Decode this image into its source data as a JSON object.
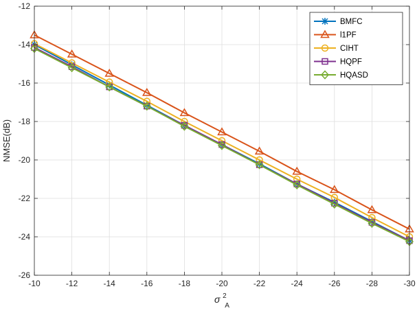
{
  "chart_data": {
    "type": "line",
    "title": "",
    "xlabel_symbol": "σ",
    "xlabel_sup": "2",
    "xlabel_sub": "A",
    "ylabel": "NMSE(dB)",
    "x": [
      -10,
      -12,
      -14,
      -16,
      -18,
      -20,
      -22,
      -24,
      -26,
      -28,
      -30
    ],
    "xlim": [
      -10,
      -30
    ],
    "ylim": [
      -26,
      -12
    ],
    "xticks": [
      -10,
      -12,
      -14,
      -16,
      -18,
      -20,
      -22,
      -24,
      -26,
      -28,
      -30
    ],
    "yticks": [
      -12,
      -14,
      -16,
      -18,
      -20,
      -22,
      -24,
      -26
    ],
    "grid": true,
    "legend_position": "top-right",
    "series": [
      {
        "name": "BMFC",
        "marker": "asterisk",
        "color": "#0072BD",
        "values": [
          -14.0,
          -15.05,
          -16.1,
          -17.15,
          -18.2,
          -19.2,
          -20.2,
          -21.25,
          -22.2,
          -23.2,
          -24.2
        ]
      },
      {
        "name": "l1PF",
        "marker": "triangle",
        "color": "#D95319",
        "values": [
          -13.5,
          -14.5,
          -15.5,
          -16.5,
          -17.55,
          -18.55,
          -19.55,
          -20.6,
          -21.55,
          -22.6,
          -23.6
        ]
      },
      {
        "name": "CIHT",
        "marker": "circle",
        "color": "#EDB120",
        "values": [
          -13.95,
          -14.95,
          -15.95,
          -16.95,
          -18.0,
          -19.0,
          -20.0,
          -21.0,
          -21.95,
          -23.0,
          -24.0
        ]
      },
      {
        "name": "HQPF",
        "marker": "square",
        "color": "#7E2F8E",
        "values": [
          -14.15,
          -15.15,
          -16.2,
          -17.2,
          -18.2,
          -19.2,
          -20.25,
          -21.25,
          -22.25,
          -23.25,
          -24.2
        ]
      },
      {
        "name": "HQASD",
        "marker": "diamond",
        "color": "#77AC30",
        "values": [
          -14.2,
          -15.2,
          -16.2,
          -17.2,
          -18.25,
          -19.25,
          -20.25,
          -21.3,
          -22.3,
          -23.3,
          -24.25
        ]
      }
    ]
  }
}
